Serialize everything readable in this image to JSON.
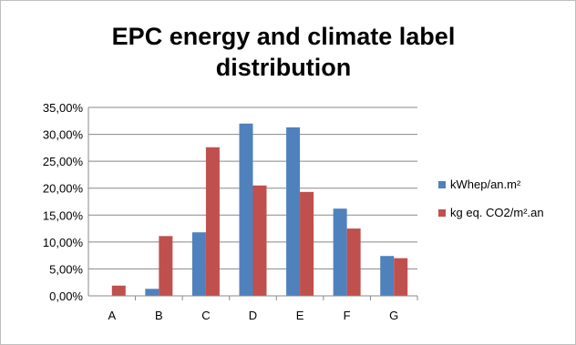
{
  "chart_data": {
    "type": "bar",
    "title": "EPC energy and climate label distribution",
    "categories": [
      "A",
      "B",
      "C",
      "D",
      "E",
      "F",
      "G"
    ],
    "series": [
      {
        "name": "kWhep/an.m²",
        "color": "#4f81bd",
        "values": [
          0.0,
          1.3,
          11.8,
          32.0,
          31.3,
          16.2,
          7.4
        ]
      },
      {
        "name": "kg eq. CO2/m².an",
        "color": "#c0504d",
        "values": [
          1.9,
          11.1,
          27.6,
          20.5,
          19.3,
          12.5,
          7.0
        ]
      }
    ],
    "ylim": [
      0,
      35
    ],
    "yticks": [
      "0,00%",
      "5,00%",
      "10,00%",
      "15,00%",
      "20,00%",
      "25,00%",
      "30,00%",
      "35,00%"
    ],
    "grid": true,
    "legend_position": "right"
  }
}
